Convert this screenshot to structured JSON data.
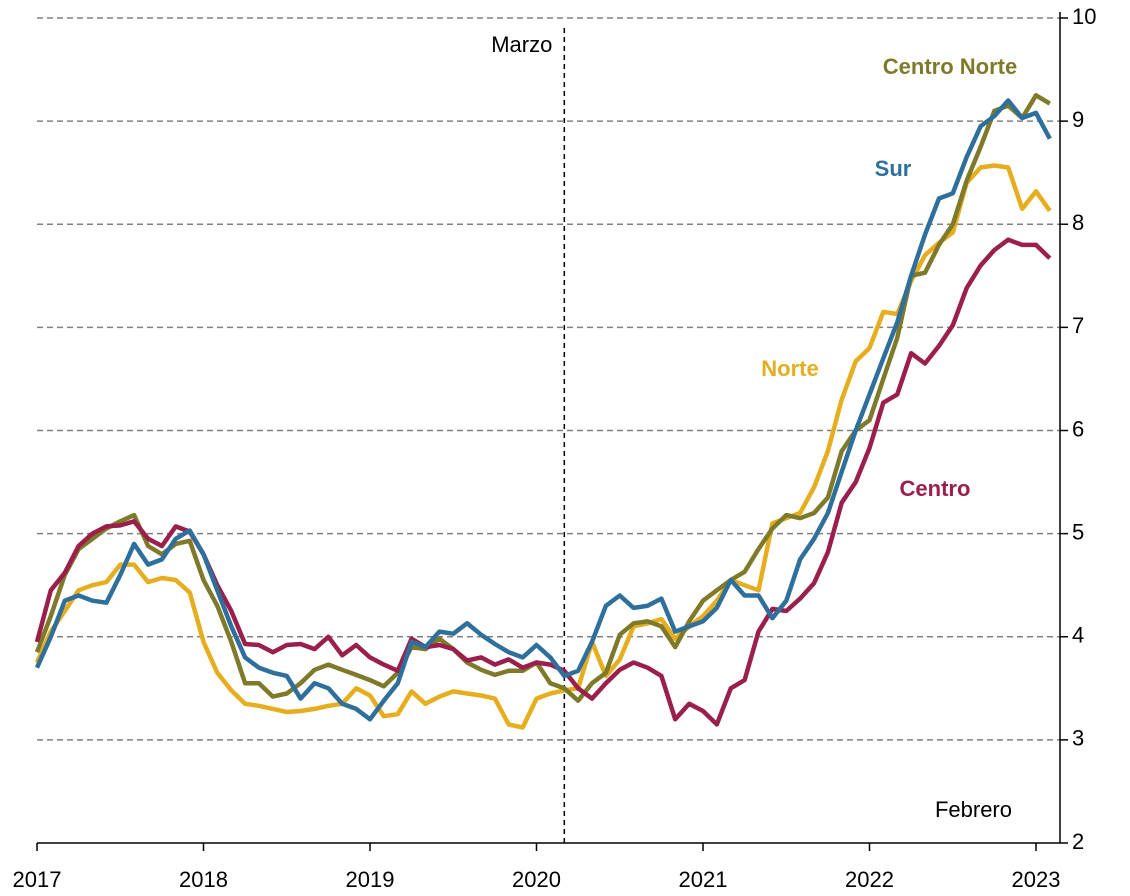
{
  "chart_data": {
    "type": "line",
    "x": [
      2017,
      2017.083,
      2017.167,
      2017.25,
      2017.333,
      2017.417,
      2017.5,
      2017.583,
      2017.667,
      2017.75,
      2017.833,
      2017.917,
      2018,
      2018.083,
      2018.167,
      2018.25,
      2018.333,
      2018.417,
      2018.5,
      2018.583,
      2018.667,
      2018.75,
      2018.833,
      2018.917,
      2019,
      2019.083,
      2019.167,
      2019.25,
      2019.333,
      2019.417,
      2019.5,
      2019.583,
      2019.667,
      2019.75,
      2019.833,
      2019.917,
      2020,
      2020.083,
      2020.167,
      2020.25,
      2020.333,
      2020.417,
      2020.5,
      2020.583,
      2020.667,
      2020.75,
      2020.833,
      2020.917,
      2021,
      2021.083,
      2021.167,
      2021.25,
      2021.333,
      2021.417,
      2021.5,
      2021.583,
      2021.667,
      2021.75,
      2021.833,
      2021.917,
      2022,
      2022.083,
      2022.167,
      2022.25,
      2022.333,
      2022.417,
      2022.5,
      2022.583,
      2022.667,
      2022.75,
      2022.833,
      2022.917,
      2023,
      2023.083
    ],
    "series": [
      {
        "name": "Norte",
        "color": "#e6ad1e",
        "values": [
          3.75,
          4.05,
          4.25,
          4.45,
          4.5,
          4.53,
          4.7,
          4.7,
          4.53,
          4.57,
          4.55,
          4.43,
          3.95,
          3.65,
          3.48,
          3.35,
          3.33,
          3.3,
          3.27,
          3.28,
          3.3,
          3.33,
          3.35,
          3.5,
          3.43,
          3.23,
          3.25,
          3.47,
          3.35,
          3.42,
          3.47,
          3.45,
          3.43,
          3.4,
          3.15,
          3.12,
          3.4,
          3.45,
          3.48,
          3.5,
          3.95,
          3.62,
          3.78,
          4.1,
          4.13,
          4.17,
          3.98,
          4.1,
          4.2,
          4.35,
          4.55,
          4.5,
          4.45,
          5.1,
          5.15,
          5.2,
          5.45,
          5.8,
          6.3,
          6.67,
          6.8,
          7.15,
          7.13,
          7.45,
          7.7,
          7.82,
          7.92,
          8.4,
          8.55,
          8.57,
          8.55,
          8.15,
          8.32,
          8.13
        ]
      },
      {
        "name": "Centro Norte",
        "color": "#7f7a2a",
        "values": [
          3.85,
          4.2,
          4.6,
          4.85,
          4.95,
          5.05,
          5.12,
          5.18,
          4.88,
          4.8,
          4.9,
          4.93,
          4.55,
          4.3,
          3.95,
          3.55,
          3.55,
          3.42,
          3.45,
          3.55,
          3.68,
          3.73,
          3.68,
          3.63,
          3.58,
          3.52,
          3.65,
          3.9,
          3.88,
          3.98,
          3.88,
          3.75,
          3.68,
          3.63,
          3.67,
          3.67,
          3.75,
          3.55,
          3.5,
          3.38,
          3.55,
          3.65,
          4.02,
          4.13,
          4.15,
          4.1,
          3.9,
          4.15,
          4.35,
          4.45,
          4.55,
          4.63,
          4.85,
          5.05,
          5.18,
          5.15,
          5.2,
          5.35,
          5.8,
          6.0,
          6.1,
          6.5,
          6.9,
          7.5,
          7.53,
          7.8,
          8.0,
          8.42,
          8.75,
          9.1,
          9.15,
          9.03,
          9.25,
          9.17
        ]
      },
      {
        "name": "Centro",
        "color": "#9a1f4c",
        "values": [
          3.95,
          4.45,
          4.62,
          4.88,
          5.0,
          5.07,
          5.08,
          5.12,
          4.95,
          4.88,
          5.07,
          5.02,
          4.8,
          4.5,
          4.25,
          3.93,
          3.92,
          3.85,
          3.92,
          3.93,
          3.88,
          4.0,
          3.82,
          3.92,
          3.8,
          3.73,
          3.67,
          3.98,
          3.9,
          3.92,
          3.88,
          3.77,
          3.8,
          3.73,
          3.78,
          3.7,
          3.75,
          3.73,
          3.67,
          3.5,
          3.4,
          3.55,
          3.68,
          3.75,
          3.7,
          3.62,
          3.2,
          3.35,
          3.28,
          3.15,
          3.5,
          3.58,
          4.05,
          4.27,
          4.25,
          4.37,
          4.52,
          4.82,
          5.3,
          5.5,
          5.83,
          6.27,
          6.35,
          6.75,
          6.65,
          6.82,
          7.02,
          7.38,
          7.6,
          7.75,
          7.85,
          7.8,
          7.8,
          7.67
        ]
      },
      {
        "name": "Sur",
        "color": "#2f6f9c",
        "values": [
          3.7,
          4.0,
          4.35,
          4.4,
          4.35,
          4.33,
          4.6,
          4.9,
          4.7,
          4.75,
          4.95,
          5.03,
          4.8,
          4.45,
          4.1,
          3.8,
          3.7,
          3.65,
          3.62,
          3.4,
          3.55,
          3.5,
          3.35,
          3.3,
          3.2,
          3.38,
          3.55,
          3.95,
          3.9,
          4.05,
          4.03,
          4.13,
          4.02,
          3.93,
          3.85,
          3.8,
          3.92,
          3.8,
          3.62,
          3.67,
          3.95,
          4.3,
          4.4,
          4.28,
          4.3,
          4.37,
          4.05,
          4.1,
          4.15,
          4.28,
          4.55,
          4.4,
          4.4,
          4.18,
          4.35,
          4.75,
          4.95,
          5.2,
          5.6,
          6.0,
          6.35,
          6.7,
          7.05,
          7.5,
          7.9,
          8.25,
          8.3,
          8.65,
          8.95,
          9.05,
          9.2,
          9.03,
          9.08,
          8.83
        ]
      }
    ],
    "xlim": [
      2017,
      2023.15
    ],
    "xticks": [
      2017,
      2018,
      2019,
      2020,
      2021,
      2022,
      2023
    ],
    "ylim": [
      2,
      10
    ],
    "yticks": [
      2,
      3,
      4,
      5,
      6,
      7,
      8,
      9,
      10
    ],
    "grid": true,
    "annotations": [
      {
        "text": "Marzo",
        "x": 2020.167
      },
      {
        "text": "Febrero"
      }
    ]
  }
}
